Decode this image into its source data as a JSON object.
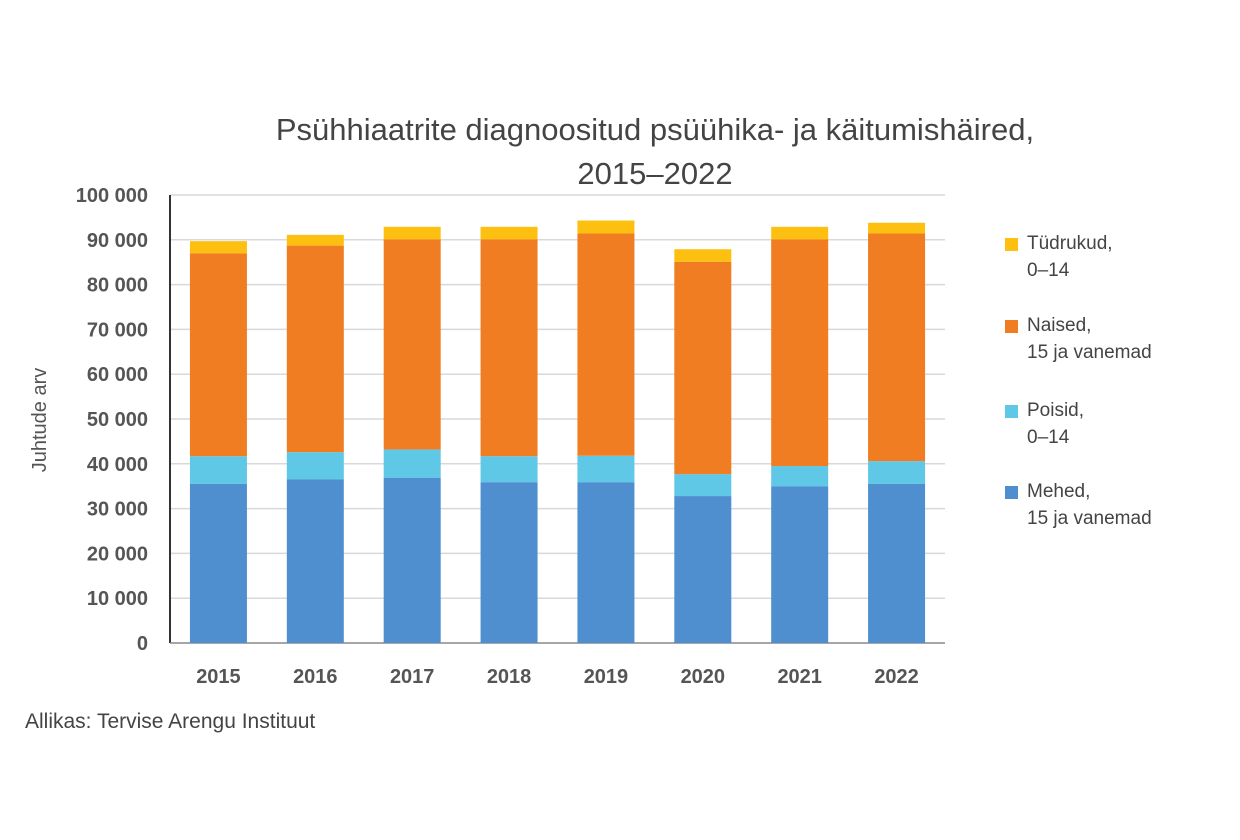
{
  "chart_data": {
    "type": "bar",
    "stacked": true,
    "title": "Psühhiaatrite diagnoositud psüühika- ja käitumishäired,\n2015–2022",
    "ylabel": "Juhtude arv",
    "xlabel": "",
    "ylim": [
      0,
      100000
    ],
    "yticks": [
      "0",
      "10 000",
      "20 000",
      "30 000",
      "40 000",
      "50 000",
      "60 000",
      "70 000",
      "80 000",
      "90 000",
      "100 000"
    ],
    "grid": true,
    "legend_position": "right",
    "categories": [
      "2015",
      "2016",
      "2017",
      "2018",
      "2019",
      "2020",
      "2021",
      "2022"
    ],
    "series": [
      {
        "name": "Mehed,\n15 ja vanemad",
        "color": "#4f8fcf",
        "values": [
          35500,
          36500,
          36900,
          35900,
          35900,
          32800,
          35000,
          35500
        ]
      },
      {
        "name": "Poisid,\n0–14",
        "color": "#5ec8e6",
        "values": [
          6200,
          6100,
          6300,
          5800,
          5900,
          4900,
          4500,
          5100
        ]
      },
      {
        "name": "Naised,\n15 ja vanemad",
        "color": "#f07d22",
        "values": [
          45300,
          46100,
          46900,
          48400,
          49600,
          47400,
          50600,
          50800
        ]
      },
      {
        "name": "Tüdrukud,\n0–14",
        "color": "#fdbf10",
        "values": [
          2700,
          2400,
          2800,
          2800,
          2900,
          2800,
          2800,
          2400
        ]
      }
    ]
  },
  "source": "Allikas: Tervise Arengu Instituut"
}
